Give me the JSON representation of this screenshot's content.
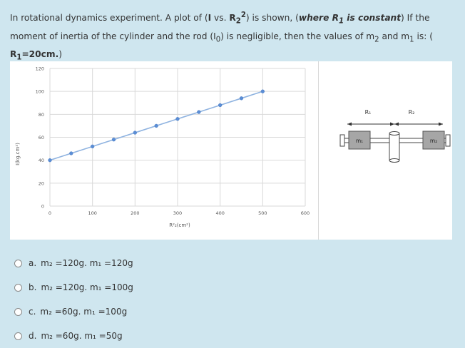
{
  "question": {
    "p1": "In rotational dynamics experiment. A plot of (",
    "p2": "I",
    "p3": " vs. ",
    "p4": "R",
    "p4sub": "2",
    "p4sup": "2",
    "p5": ") is shown, (",
    "p6": "where R",
    "p6sub": "1",
    "p7": " is constant",
    "p8": ") If the moment of inertia of the cylinder and the rod (I",
    "p8sub": "0",
    "p9": ") is negligible, then the values of m",
    "p9sub": "2",
    "p10": " and m",
    "p10sub": "1",
    "p11": " is: ( ",
    "p12": "R",
    "p12sub": "1",
    "p13": "=20cm.",
    "p14": ")"
  },
  "chart_data": {
    "type": "line",
    "x": [
      0,
      50,
      100,
      150,
      200,
      250,
      300,
      350,
      400,
      450,
      500
    ],
    "series": [
      {
        "values": [
          40,
          46,
          52,
          58,
          64,
          70,
          76,
          82,
          88,
          94,
          100
        ]
      }
    ],
    "xticks": [
      0,
      100,
      200,
      300,
      400,
      500,
      600
    ],
    "yticks": [
      0,
      20,
      40,
      60,
      80,
      100,
      120
    ],
    "xlim": [
      0,
      600
    ],
    "ylim": [
      0,
      120
    ],
    "xlabel": "R²₂(cm²)",
    "ylabel": "I(kg.cm²)",
    "grid": true,
    "line_color": "#8fb3e0",
    "marker_color": "#5b8ed6"
  },
  "apparatus": {
    "r1_label": "R₁",
    "r2_label": "R₂",
    "m1_label": "m₁",
    "m2_label": "m₂"
  },
  "options": [
    {
      "letter": "a.",
      "text": "m₂ =120g. m₁ =120g"
    },
    {
      "letter": "b.",
      "text": "m₂ =120g. m₁ =100g"
    },
    {
      "letter": "c.",
      "text": "m₂ =60g. m₁ =100g"
    },
    {
      "letter": "d.",
      "text": "m₂ =60g. m₁ =50g"
    }
  ]
}
